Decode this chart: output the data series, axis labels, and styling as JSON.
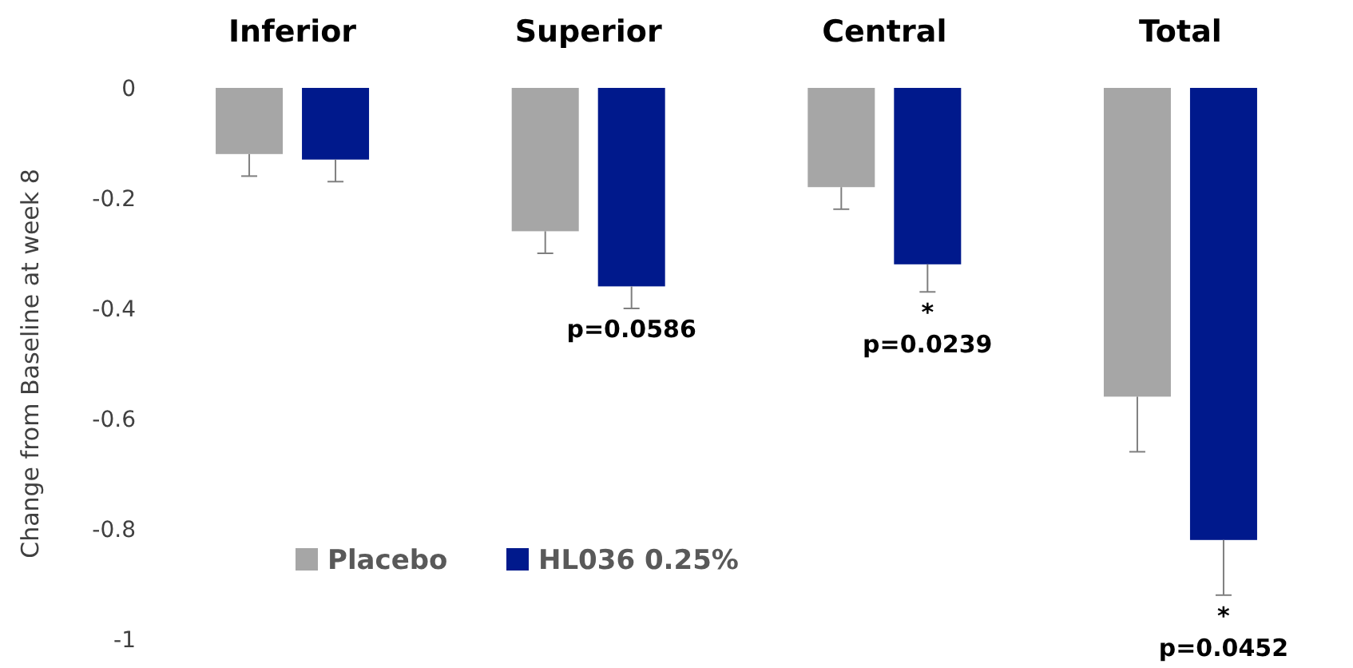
{
  "chart_data": {
    "type": "bar",
    "ylabel": "Change from Baseline at week 8",
    "categories": [
      "Inferior",
      "Superior",
      "Central",
      "Total"
    ],
    "series": [
      {
        "name": "Placebo",
        "color": "#a6a6a6",
        "values": [
          -0.12,
          -0.26,
          -0.18,
          -0.56
        ],
        "errors": [
          [
            -0.16,
            -0.12
          ],
          [
            -0.3,
            -0.26
          ],
          [
            -0.22,
            -0.18
          ],
          [
            -0.66,
            -0.56
          ]
        ]
      },
      {
        "name": "HL036 0.25%",
        "color": "#00198c",
        "values": [
          -0.13,
          -0.36,
          -0.32,
          -0.82
        ],
        "errors": [
          [
            -0.17,
            -0.13
          ],
          [
            -0.4,
            -0.36
          ],
          [
            -0.37,
            -0.32
          ],
          [
            -0.92,
            -0.82
          ]
        ]
      }
    ],
    "ylim": [
      -1,
      0
    ],
    "yticks": [
      0,
      {
        "value": -0.2,
        "label": "-0.2"
      },
      {
        "value": -0.4,
        "label": "-0.4"
      },
      {
        "value": -0.6,
        "label": "-0.6"
      },
      {
        "value": -0.8,
        "label": "-0.8"
      },
      -1
    ],
    "grid": false,
    "legend": "bottom left",
    "annotations": [
      "p=0.0586",
      "*\np=0.0239",
      "*\np=0.0452"
    ]
  }
}
